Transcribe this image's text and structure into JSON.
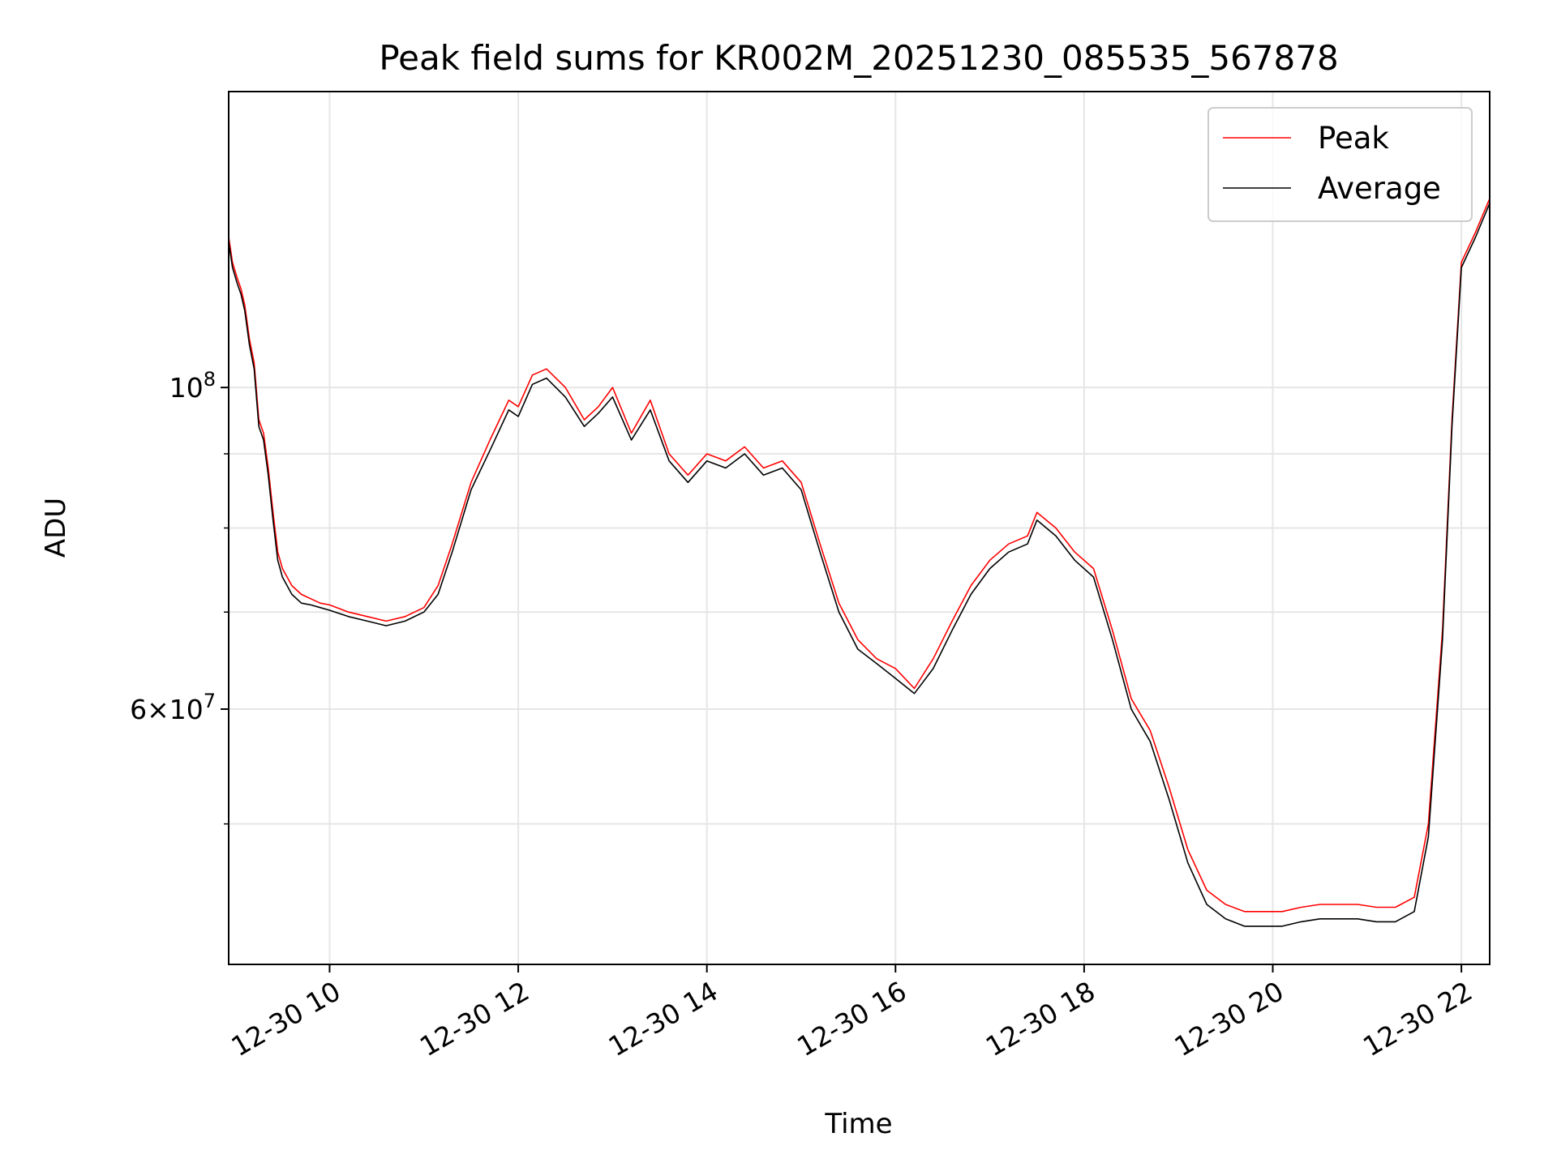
{
  "chart_data": {
    "type": "line",
    "title": "Peak field sums for KR002M_20251230_085535_567878",
    "xlabel": "Time",
    "ylabel": "ADU",
    "x_type": "datetime",
    "xlim_hours": [
      8.93,
      22.3
    ],
    "y_scale": "log",
    "ylim": [
      40000000,
      160000000
    ],
    "grid": true,
    "legend": "top-right",
    "x_ticks": [
      {
        "hour": 10,
        "label": "12-30 10"
      },
      {
        "hour": 12,
        "label": "12-30 12"
      },
      {
        "hour": 14,
        "label": "12-30 14"
      },
      {
        "hour": 16,
        "label": "12-30 16"
      },
      {
        "hour": 18,
        "label": "12-30 18"
      },
      {
        "hour": 20,
        "label": "12-30 20"
      },
      {
        "hour": 22,
        "label": "12-30 22"
      }
    ],
    "y_major_ticks": [
      {
        "value": 60000000,
        "base": "6",
        "exp": "7"
      },
      {
        "value": 100000000,
        "base": "10",
        "exp": "8"
      }
    ],
    "y_minor_grid": [
      50000000,
      70000000,
      80000000,
      90000000
    ],
    "series": [
      {
        "name": "Peak",
        "color": "#ff0000",
        "x_hours": [
          8.93,
          8.97,
          9.02,
          9.06,
          9.1,
          9.15,
          9.2,
          9.25,
          9.3,
          9.35,
          9.4,
          9.45,
          9.5,
          9.6,
          9.7,
          9.8,
          9.9,
          10.0,
          10.2,
          10.4,
          10.6,
          10.8,
          11.0,
          11.15,
          11.3,
          11.5,
          11.7,
          11.9,
          12.0,
          12.15,
          12.3,
          12.5,
          12.7,
          12.85,
          13.0,
          13.2,
          13.4,
          13.6,
          13.8,
          14.0,
          14.2,
          14.4,
          14.6,
          14.8,
          15.0,
          15.2,
          15.4,
          15.6,
          15.8,
          16.0,
          16.2,
          16.4,
          16.6,
          16.8,
          17.0,
          17.2,
          17.4,
          17.5,
          17.7,
          17.9,
          18.1,
          18.3,
          18.5,
          18.7,
          18.9,
          19.1,
          19.3,
          19.5,
          19.7,
          19.9,
          20.1,
          20.3,
          20.5,
          20.7,
          20.9,
          21.1,
          21.3,
          21.5,
          21.65,
          21.8,
          21.9,
          22.0,
          22.15,
          22.3
        ],
        "values": [
          127000000,
          122000000,
          119000000,
          117000000,
          114000000,
          108000000,
          104000000,
          95000000,
          93000000,
          88000000,
          82000000,
          77000000,
          75000000,
          73000000,
          72000000,
          71500000,
          71000000,
          70800000,
          70000000,
          69500000,
          69000000,
          69500000,
          70500000,
          73000000,
          78000000,
          86000000,
          92000000,
          98000000,
          97000000,
          102000000,
          103000000,
          100000000,
          95000000,
          97000000,
          100000000,
          93000000,
          98000000,
          90000000,
          87000000,
          90000000,
          89000000,
          91000000,
          88000000,
          89000000,
          86000000,
          78000000,
          71000000,
          67000000,
          65000000,
          64000000,
          62000000,
          65000000,
          69000000,
          73000000,
          76000000,
          78000000,
          79000000,
          82000000,
          80000000,
          77000000,
          75000000,
          68000000,
          61000000,
          58000000,
          53000000,
          48000000,
          45000000,
          44000000,
          43500000,
          43500000,
          43500000,
          43800000,
          44000000,
          44000000,
          44000000,
          43800000,
          43800000,
          44500000,
          50000000,
          68000000,
          95000000,
          122000000,
          128000000,
          135000000
        ]
      },
      {
        "name": "Average",
        "color": "#000000",
        "x_hours": [
          8.93,
          8.97,
          9.02,
          9.06,
          9.1,
          9.15,
          9.2,
          9.25,
          9.3,
          9.35,
          9.4,
          9.45,
          9.5,
          9.6,
          9.7,
          9.8,
          9.9,
          10.0,
          10.2,
          10.4,
          10.6,
          10.8,
          11.0,
          11.15,
          11.3,
          11.5,
          11.7,
          11.9,
          12.0,
          12.15,
          12.3,
          12.5,
          12.7,
          12.85,
          13.0,
          13.2,
          13.4,
          13.6,
          13.8,
          14.0,
          14.2,
          14.4,
          14.6,
          14.8,
          15.0,
          15.2,
          15.4,
          15.6,
          15.8,
          16.0,
          16.2,
          16.4,
          16.6,
          16.8,
          17.0,
          17.2,
          17.4,
          17.5,
          17.7,
          17.9,
          18.1,
          18.3,
          18.5,
          18.7,
          18.9,
          19.1,
          19.3,
          19.5,
          19.7,
          19.9,
          20.1,
          20.3,
          20.5,
          20.7,
          20.9,
          21.1,
          21.3,
          21.5,
          21.65,
          21.8,
          21.9,
          22.0,
          22.15,
          22.3
        ],
        "values": [
          126000000,
          121000000,
          118000000,
          116000000,
          113000000,
          107000000,
          103000000,
          94000000,
          92000000,
          87000000,
          81000000,
          76000000,
          74000000,
          72000000,
          71000000,
          70800000,
          70500000,
          70200000,
          69500000,
          69000000,
          68500000,
          69000000,
          70000000,
          72000000,
          77000000,
          85000000,
          90500000,
          96500000,
          95500000,
          100500000,
          101500000,
          98500000,
          94000000,
          96000000,
          98500000,
          92000000,
          96500000,
          89000000,
          86000000,
          89000000,
          88000000,
          90000000,
          87000000,
          88000000,
          85000000,
          77000000,
          70000000,
          66000000,
          64500000,
          63000000,
          61500000,
          64000000,
          68000000,
          72000000,
          75000000,
          77000000,
          78000000,
          81000000,
          79000000,
          76000000,
          74000000,
          67000000,
          60000000,
          57000000,
          52000000,
          47000000,
          44000000,
          43000000,
          42500000,
          42500000,
          42500000,
          42800000,
          43000000,
          43000000,
          43000000,
          42800000,
          42800000,
          43500000,
          49000000,
          67000000,
          94000000,
          121000000,
          127000000,
          134000000
        ]
      }
    ]
  }
}
